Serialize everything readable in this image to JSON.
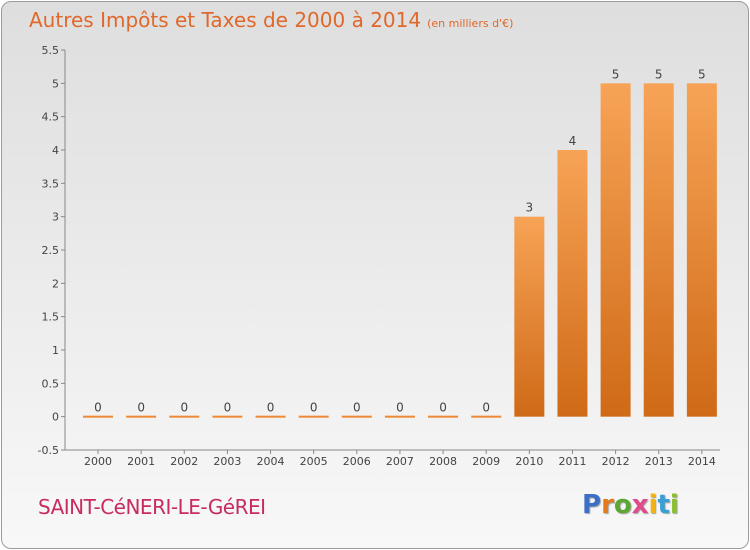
{
  "title": "Autres Impôts et Taxes de 2000 à 2014",
  "subtitle": "(en milliers d'€)",
  "place": "SAINT-CéNERI-LE-GéREI",
  "logo": {
    "letters": [
      "P",
      "r",
      "o",
      "x",
      "i",
      "t",
      "i"
    ],
    "colors": [
      "#3a6fc4",
      "#e57a1d",
      "#5aa832",
      "#e04a8b",
      "#f2b314",
      "#3a9fd6",
      "#8bbf2e"
    ]
  },
  "chart_data": {
    "type": "bar",
    "categories": [
      "2000",
      "2001",
      "2002",
      "2003",
      "2004",
      "2005",
      "2006",
      "2007",
      "2008",
      "2009",
      "2010",
      "2011",
      "2012",
      "2013",
      "2014"
    ],
    "values": [
      0,
      0,
      0,
      0,
      0,
      0,
      0,
      0,
      0,
      0,
      3,
      4,
      5,
      5,
      5
    ],
    "data_labels": [
      "0",
      "0",
      "0",
      "0",
      "0",
      "0",
      "0",
      "0",
      "0",
      "0",
      "3",
      "4",
      "5",
      "5",
      "5"
    ],
    "yticks": [
      "-0.5",
      "0",
      "0.5",
      "1",
      "1.5",
      "2",
      "2.5",
      "3",
      "3.5",
      "4",
      "4.5",
      "5",
      "5.5"
    ],
    "ylim": [
      -0.5,
      5.5
    ],
    "bar_color": "#ee8a33",
    "grid": false
  }
}
